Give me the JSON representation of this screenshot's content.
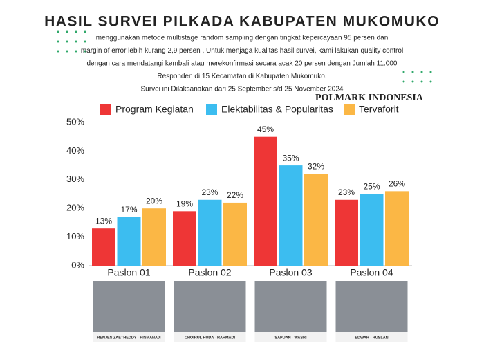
{
  "chart_data": {
    "type": "bar",
    "title": "HASIL SURVEI PILKADA KABUPATEN MUKOMUKO",
    "subtitle_lines": [
      "menggunakan metode multistage random sampling dengan tingkat kepercayaan 95 persen dan",
      "margin of error lebih kurang 2,9 persen , Untuk menjaga kualitas hasil survei, kami lakukan quality control",
      "dengan cara mendatangi kembali atau merekonfirmasi secara acak 20 persen dengan Jumlah 11.000",
      "Responden di 15 Kecamatan di Kabupaten Mukomuko.",
      "Survei ini Dilaksanakan dari 25 September s/d 25 November 2024"
    ],
    "source": "POLMARK INDONESIA",
    "categories": [
      "Paslon 01",
      "Paslon 02",
      "Paslon 03",
      "Paslon 04"
    ],
    "photo_captions": [
      "RENJES ZAETHEDDY - RISMANAJI",
      "CHOIRUL HUDA - RAHMADI",
      "SAPUAN - WASRI",
      "EDWAR - RUSLAN"
    ],
    "series": [
      {
        "name": "Program Kegiatan",
        "color": "#ee3636",
        "values": [
          13,
          19,
          45,
          23
        ],
        "value_labels": [
          "13%",
          "19%",
          "45%",
          "23%"
        ]
      },
      {
        "name": "Elektabilitas & Popularitas",
        "color": "#3cbdf0",
        "values": [
          17,
          23,
          35,
          25
        ],
        "value_labels": [
          "17%",
          "23%",
          "35%",
          "25%"
        ]
      },
      {
        "name": "Tervaforit",
        "color": "#fbb745",
        "values": [
          20,
          22,
          32,
          26
        ],
        "value_labels": [
          "20%",
          "22%",
          "32%",
          "26%"
        ]
      }
    ],
    "ylim": [
      0,
      50
    ],
    "yticks": [
      {
        "value": 0,
        "label": "0%"
      },
      {
        "value": 10,
        "label": "10%"
      },
      {
        "value": 20,
        "label": "20%"
      },
      {
        "value": 30,
        "label": "30%"
      },
      {
        "value": 40,
        "label": "40%"
      },
      {
        "value": 50,
        "label": "50%"
      }
    ],
    "grid": false,
    "legend": "top"
  }
}
